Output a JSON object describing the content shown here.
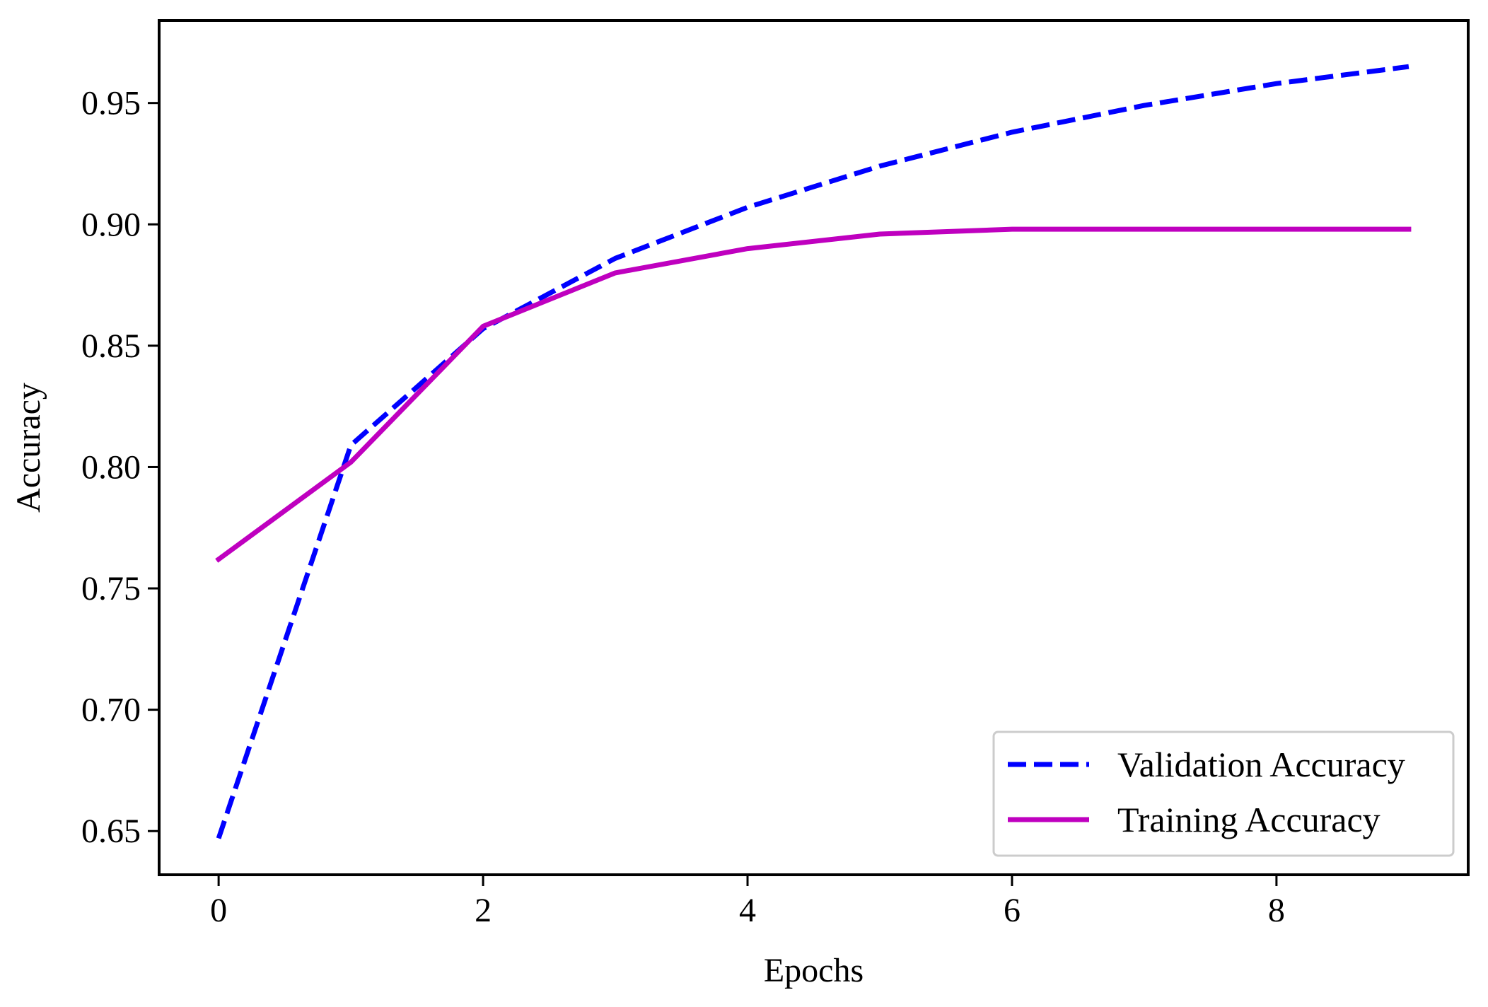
{
  "chart_data": {
    "type": "line",
    "title": "",
    "xlabel": "Epochs",
    "ylabel": "Accuracy",
    "x": [
      0,
      1,
      2,
      3,
      4,
      5,
      6,
      7,
      8,
      9
    ],
    "xlim": [
      -0.45,
      9.45
    ],
    "ylim": [
      0.632,
      0.984
    ],
    "xticks": [
      0,
      2,
      4,
      6,
      8
    ],
    "yticks": [
      0.65,
      0.7,
      0.75,
      0.8,
      0.85,
      0.9,
      0.95
    ],
    "xtick_labels": [
      "0",
      "2",
      "4",
      "6",
      "8"
    ],
    "ytick_labels": [
      "0.65",
      "0.70",
      "0.75",
      "0.80",
      "0.85",
      "0.90",
      "0.95"
    ],
    "grid": false,
    "legend_position": "bottom-right",
    "series": [
      {
        "name": "Validation Accuracy",
        "color": "#0000ff",
        "style": "dashed",
        "values": [
          0.647,
          0.809,
          0.857,
          0.886,
          0.907,
          0.924,
          0.938,
          0.949,
          0.958,
          0.965
        ]
      },
      {
        "name": "Training Accuracy",
        "color": "#bf00bf",
        "style": "solid",
        "values": [
          0.762,
          0.802,
          0.858,
          0.88,
          0.89,
          0.896,
          0.898,
          0.898,
          0.898,
          0.898
        ]
      }
    ]
  }
}
